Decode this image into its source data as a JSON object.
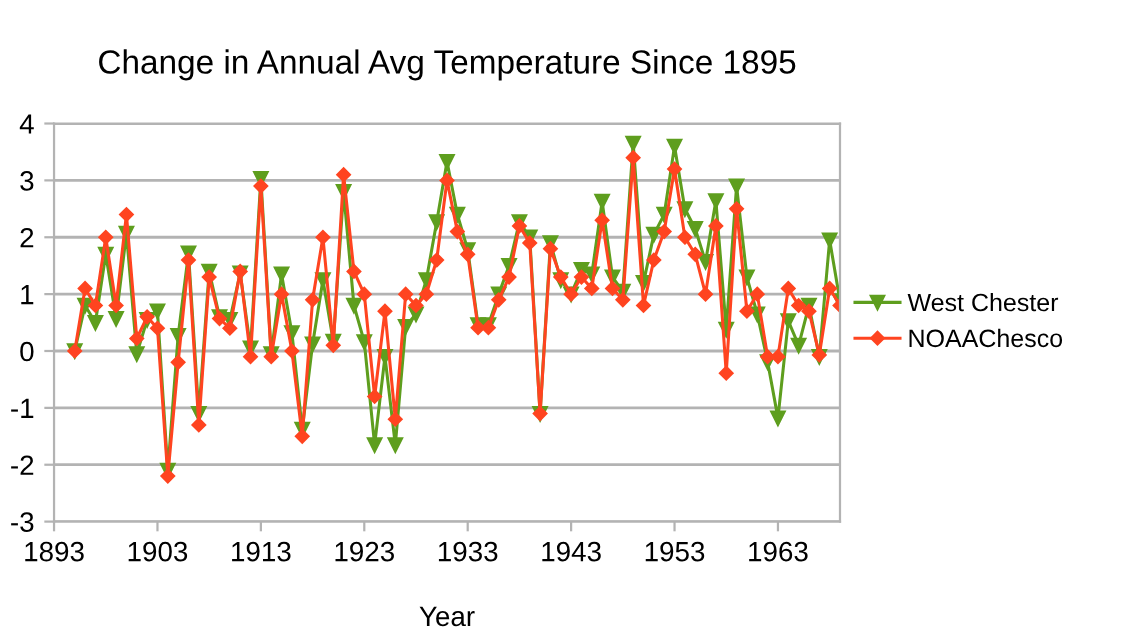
{
  "chart_data": {
    "type": "line",
    "title": "Change in Annual Avg Temperature Since 1895",
    "xlabel": "Year",
    "x": [
      1895,
      1896,
      1897,
      1898,
      1899,
      1900,
      1901,
      1902,
      1903,
      1904,
      1905,
      1906,
      1907,
      1908,
      1909,
      1910,
      1911,
      1912,
      1913,
      1914,
      1915,
      1916,
      1917,
      1918,
      1919,
      1920,
      1921,
      1922,
      1923,
      1924,
      1925,
      1926,
      1927,
      1928,
      1929,
      1930,
      1931,
      1932,
      1933,
      1934,
      1935,
      1936,
      1937,
      1938,
      1939,
      1940,
      1941,
      1942,
      1943,
      1944,
      1945,
      1946,
      1947,
      1948,
      1949,
      1950,
      1951,
      1952,
      1953,
      1954,
      1955,
      1956,
      1957,
      1958,
      1959,
      1960,
      1961,
      1962,
      1963,
      1964,
      1965,
      1966,
      1967,
      1968,
      1969
    ],
    "series": [
      {
        "name": "West Chester",
        "color": "#5e9e1e",
        "marker": "triangle",
        "values": [
          0,
          0.8,
          0.5,
          1.7,
          0.57,
          2.07,
          -0.05,
          0.55,
          0.7,
          -2.1,
          0.27,
          1.72,
          -1.1,
          1.4,
          0.6,
          0.55,
          1.37,
          0.05,
          3.03,
          -0.05,
          1.35,
          0.32,
          -1.38,
          0.12,
          1.25,
          0.17,
          2.8,
          0.8,
          0.16,
          -1.65,
          -0.1,
          -1.65,
          0.43,
          0.65,
          1.25,
          2.27,
          3.33,
          2.4,
          1.78,
          0.46,
          0.46,
          1.0,
          1.5,
          2.27,
          2.0,
          -1.1,
          1.9,
          1.25,
          1.0,
          1.43,
          1.35,
          2.63,
          1.3,
          1.05,
          3.65,
          1.2,
          2.05,
          2.4,
          3.6,
          2.5,
          2.15,
          1.57,
          2.64,
          0.38,
          2.9,
          1.3,
          0.65,
          -0.19,
          -1.18,
          0.53,
          0.1,
          0.8,
          -0.1,
          1.95,
          0.88
        ]
      },
      {
        "name": "NOAAChesco",
        "color": "#ff4420",
        "marker": "diamond",
        "values": [
          0,
          1.1,
          0.8,
          2.0,
          0.8,
          2.4,
          0.22,
          0.6,
          0.4,
          -2.2,
          -0.2,
          1.6,
          -1.3,
          1.3,
          0.57,
          0.4,
          1.4,
          -0.1,
          2.9,
          -0.1,
          1.0,
          0,
          -1.5,
          0.9,
          2.0,
          0.1,
          3.1,
          1.4,
          1.0,
          -0.8,
          0.7,
          -1.2,
          1.0,
          0.8,
          1.0,
          1.6,
          3.0,
          2.1,
          1.7,
          0.41,
          0.41,
          0.9,
          1.3,
          2.2,
          1.9,
          -1.1,
          1.8,
          1.3,
          1.0,
          1.3,
          1.1,
          2.3,
          1.1,
          0.9,
          3.4,
          0.8,
          1.6,
          2.1,
          3.2,
          2.0,
          1.7,
          1.0,
          2.2,
          -0.39,
          2.5,
          0.7,
          1.0,
          -0.1,
          -0.1,
          1.1,
          0.8,
          0.7,
          -0.07,
          1.1,
          0.8
        ]
      }
    ],
    "xlim": [
      1893,
      1969
    ],
    "xticks": [
      1893,
      1903,
      1913,
      1923,
      1933,
      1943,
      1953,
      1963
    ],
    "ylim": [
      -3,
      4
    ],
    "yticks": [
      -3,
      -2,
      -1,
      0,
      1,
      2,
      3,
      4
    ],
    "grid": "y",
    "legend": "right",
    "line_style": "solid"
  }
}
